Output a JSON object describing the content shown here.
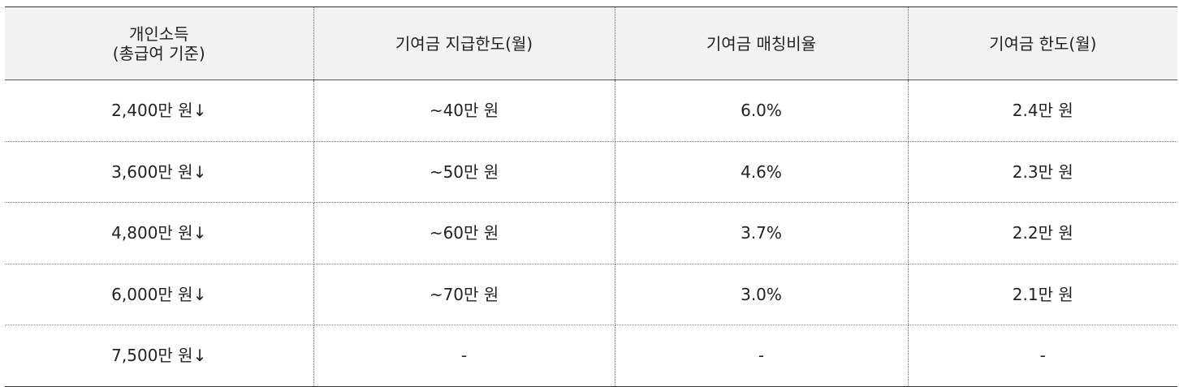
{
  "table": {
    "header": [
      "개인소득\n(총급여 기준)",
      "기여금 지급한도(월)",
      "기여금 매칭비율",
      "기여금 한도(월)"
    ],
    "rows": [
      [
        "2,400만 원↓",
        "~40만 원",
        "6.0%",
        "2.4만 원"
      ],
      [
        "3,600만 원↓",
        "~50만 원",
        "4.6%",
        "2.3만 원"
      ],
      [
        "4,800만 원↓",
        "~60만 원",
        "3.7%",
        "2.2만 원"
      ],
      [
        "6,000만 원↓",
        "~70만 원",
        "3.0%",
        "2.1만 원"
      ],
      [
        "7,500만 원↓",
        "-",
        "-",
        "-"
      ]
    ]
  }
}
